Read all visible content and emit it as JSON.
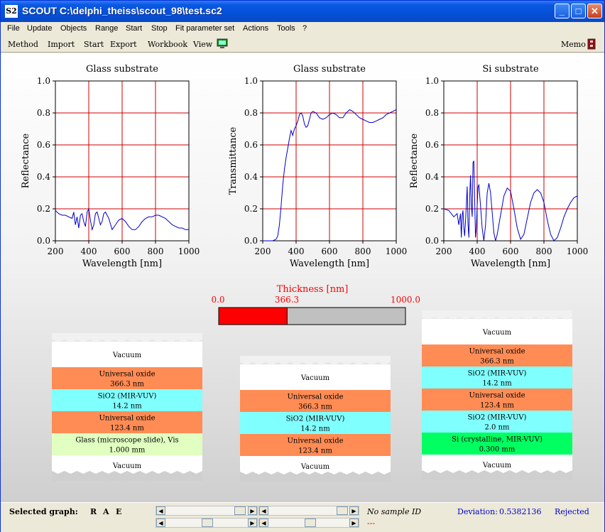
{
  "window": {
    "title": "SCOUT C:\\delphi_theiss\\scout_98\\test.sc2",
    "icon_text": "S2",
    "minimize": "_",
    "maximize": "□",
    "close": "✕"
  },
  "menu": [
    "File",
    "Update",
    "Objects",
    "Range",
    "Start",
    "Stop",
    "Fit parameter set",
    "Actions",
    "Tools",
    "?"
  ],
  "toolbar": {
    "items": [
      "Method",
      "Import",
      "Start",
      "Export",
      "Workbook",
      "View"
    ],
    "memo": "Memo"
  },
  "charts": [
    {
      "title": "Glass substrate",
      "ylabel": "Reflectance",
      "xlabel": "Wavelength [nm]",
      "xticks": [
        "200",
        "400",
        "600",
        "800",
        "1000"
      ],
      "yticks": [
        "0.0",
        "0.2",
        "0.4",
        "0.6",
        "0.8",
        "1.0"
      ]
    },
    {
      "title": "Glass substrate",
      "ylabel": "Transmittance",
      "xlabel": "Wavelength [nm]",
      "xticks": [
        "200",
        "400",
        "600",
        "800",
        "1000"
      ],
      "yticks": [
        "0.0",
        "0.2",
        "0.4",
        "0.6",
        "0.8",
        "1.0"
      ]
    },
    {
      "title": "Si substrate",
      "ylabel": "Reflectance",
      "xlabel": "Wavelength [nm]",
      "xticks": [
        "200",
        "400",
        "600",
        "800",
        "1000"
      ],
      "yticks": [
        "0.0",
        "0.2",
        "0.4",
        "0.6",
        "0.8",
        "1.0"
      ]
    }
  ],
  "chart_data": [
    {
      "type": "line",
      "title": "Glass substrate",
      "xlabel": "Wavelength [nm]",
      "ylabel": "Reflectance",
      "xlim": [
        200,
        1000
      ],
      "ylim": [
        0,
        1
      ],
      "grid": true,
      "series": [
        {
          "color": "#0000cc",
          "x": [
            200,
            220,
            240,
            260,
            280,
            300,
            310,
            320,
            330,
            340,
            350,
            360,
            370,
            380,
            390,
            400,
            410,
            420,
            430,
            440,
            450,
            460,
            470,
            480,
            490,
            500,
            520,
            540,
            560,
            580,
            600,
            620,
            640,
            660,
            680,
            700,
            720,
            740,
            760,
            780,
            800,
            820,
            840,
            860,
            880,
            900,
            920,
            940,
            960,
            980,
            1000
          ],
          "y": [
            0.19,
            0.17,
            0.16,
            0.16,
            0.15,
            0.14,
            0.18,
            0.1,
            0.15,
            0.08,
            0.16,
            0.17,
            0.12,
            0.09,
            0.18,
            0.2,
            0.13,
            0.07,
            0.1,
            0.17,
            0.18,
            0.14,
            0.1,
            0.12,
            0.17,
            0.18,
            0.14,
            0.07,
            0.1,
            0.13,
            0.14,
            0.12,
            0.09,
            0.07,
            0.07,
            0.09,
            0.12,
            0.14,
            0.15,
            0.15,
            0.16,
            0.16,
            0.15,
            0.14,
            0.12,
            0.1,
            0.09,
            0.08,
            0.08,
            0.07,
            0.07
          ]
        }
      ]
    },
    {
      "type": "line",
      "title": "Glass substrate",
      "xlabel": "Wavelength [nm]",
      "ylabel": "Transmittance",
      "xlim": [
        200,
        1000
      ],
      "ylim": [
        0,
        1
      ],
      "grid": true,
      "series": [
        {
          "color": "#0000cc",
          "x": [
            200,
            260,
            280,
            290,
            300,
            310,
            320,
            330,
            340,
            350,
            360,
            370,
            380,
            390,
            400,
            410,
            420,
            430,
            440,
            450,
            460,
            470,
            480,
            490,
            500,
            520,
            540,
            560,
            580,
            600,
            620,
            640,
            660,
            680,
            700,
            720,
            740,
            760,
            780,
            800,
            820,
            840,
            860,
            880,
            900,
            920,
            940,
            960,
            980,
            1000
          ],
          "y": [
            0.0,
            0.0,
            0.01,
            0.03,
            0.1,
            0.22,
            0.35,
            0.45,
            0.52,
            0.58,
            0.64,
            0.69,
            0.66,
            0.7,
            0.72,
            0.75,
            0.79,
            0.8,
            0.78,
            0.73,
            0.71,
            0.72,
            0.76,
            0.8,
            0.81,
            0.8,
            0.77,
            0.76,
            0.77,
            0.79,
            0.8,
            0.79,
            0.77,
            0.77,
            0.8,
            0.82,
            0.81,
            0.79,
            0.77,
            0.76,
            0.75,
            0.74,
            0.74,
            0.75,
            0.76,
            0.77,
            0.79,
            0.8,
            0.81,
            0.82
          ]
        }
      ]
    },
    {
      "type": "line",
      "title": "Si substrate",
      "xlabel": "Wavelength [nm]",
      "ylabel": "Reflectance",
      "xlim": [
        200,
        1000
      ],
      "ylim": [
        0,
        1
      ],
      "grid": true,
      "series": [
        {
          "color": "#0000cc",
          "x": [
            200,
            230,
            260,
            280,
            290,
            300,
            305,
            310,
            315,
            320,
            325,
            330,
            335,
            340,
            345,
            350,
            355,
            360,
            365,
            370,
            375,
            380,
            385,
            390,
            395,
            400,
            405,
            410,
            420,
            430,
            440,
            450,
            460,
            470,
            480,
            490,
            500,
            510,
            520,
            540,
            560,
            580,
            600,
            620,
            640,
            660,
            680,
            700,
            720,
            740,
            760,
            780,
            800,
            820,
            840,
            860,
            880,
            900,
            920,
            940,
            960,
            980,
            1000
          ],
          "y": [
            0.2,
            0.19,
            0.15,
            0.17,
            0.1,
            0.17,
            0.02,
            0.16,
            0.19,
            0.08,
            0.03,
            0.12,
            0.22,
            0.34,
            0.1,
            0.02,
            0.27,
            0.41,
            0.22,
            0.15,
            0.49,
            0.5,
            0.25,
            0.02,
            0.08,
            0.22,
            0.34,
            0.35,
            0.22,
            0.08,
            0.0,
            0.1,
            0.3,
            0.36,
            0.3,
            0.18,
            0.05,
            0.0,
            0.04,
            0.16,
            0.28,
            0.33,
            0.31,
            0.2,
            0.08,
            0.01,
            0.04,
            0.14,
            0.24,
            0.3,
            0.32,
            0.3,
            0.24,
            0.13,
            0.04,
            0.0,
            0.02,
            0.08,
            0.15,
            0.2,
            0.24,
            0.27,
            0.28
          ]
        }
      ]
    }
  ],
  "slider": {
    "label": "Thickness [nm]",
    "min": "0.0",
    "value": "366.3",
    "max": "1000.0",
    "fraction": 0.3663
  },
  "stacks": [
    {
      "layers": [
        {
          "lines": [
            "Vacuum"
          ],
          "color": "#ffffff"
        },
        {
          "lines": [
            "Universal oxide",
            "366.3 nm"
          ],
          "color": "#ff8c55"
        },
        {
          "lines": [
            "SiO2 (MIR-VUV)",
            "14.2 nm"
          ],
          "color": "#80ffff"
        },
        {
          "lines": [
            "Universal oxide",
            "123.4 nm"
          ],
          "color": "#ff8c55"
        },
        {
          "lines": [
            "Glass (microscope slide), Vis",
            "1.000 mm"
          ],
          "color": "#e0ffc0"
        },
        {
          "lines": [
            "Vacuum"
          ],
          "color": "#ffffff"
        }
      ]
    },
    {
      "layers": [
        {
          "lines": [
            "Vacuum"
          ],
          "color": "#ffffff"
        },
        {
          "lines": [
            "Universal oxide",
            "366.3 nm"
          ],
          "color": "#ff8c55"
        },
        {
          "lines": [
            "SiO2 (MIR-VUV)",
            "14.2 nm"
          ],
          "color": "#80ffff"
        },
        {
          "lines": [
            "Universal oxide",
            "123.4 nm"
          ],
          "color": "#ff8c55"
        },
        {
          "lines": [
            "Vacuum"
          ],
          "color": "#ffffff"
        }
      ]
    },
    {
      "layers": [
        {
          "lines": [
            "Vacuum"
          ],
          "color": "#ffffff"
        },
        {
          "lines": [
            "Universal oxide",
            "366.3 nm"
          ],
          "color": "#ff8c55"
        },
        {
          "lines": [
            "SiO2 (MIR-VUV)",
            "14.2 nm"
          ],
          "color": "#80ffff"
        },
        {
          "lines": [
            "Universal oxide",
            "123.4 nm"
          ],
          "color": "#ff8c55"
        },
        {
          "lines": [
            "SiO2 (MIR-VUV)",
            "2.0 nm"
          ],
          "color": "#80ffff"
        },
        {
          "lines": [
            "Si (crystalline, MIR-VUV)",
            "0.300 mm"
          ],
          "color": "#00ff60"
        },
        {
          "lines": [
            "Vacuum"
          ],
          "color": "#ffffff"
        }
      ]
    }
  ],
  "status": {
    "selected_graph_label": "Selected graph:",
    "graph_buttons": [
      "R",
      "A",
      "E"
    ],
    "sample_id": "No sample ID",
    "sample_sub": "---",
    "deviation_label": "Deviation:",
    "deviation_value": "0.5382136",
    "result": "Rejected"
  },
  "colors": {
    "accent": "#ff0000",
    "curve": "#0000cc",
    "grid": "#cc0000",
    "status_blue": "#0000cc"
  }
}
